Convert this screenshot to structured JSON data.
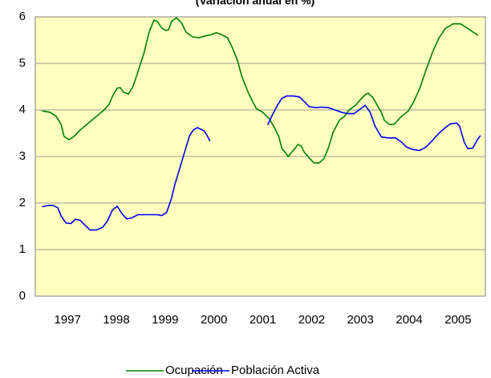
{
  "chart_data": {
    "type": "line",
    "title": "(Variación anual en %)",
    "xlim": [
      1996.34,
      2005.56
    ],
    "xticks": [
      1997,
      1998,
      1999,
      2000,
      2001,
      2002,
      2003,
      2004,
      2005
    ],
    "ylim": [
      0,
      6
    ],
    "yticks": [
      0,
      1,
      2,
      3,
      4,
      5,
      6
    ],
    "grid": true,
    "legend": "bottom",
    "series": [
      {
        "name": "Ocupación",
        "color": "#008000",
        "x": [
          1996.48,
          1996.64,
          1996.77,
          1996.87,
          1996.93,
          1997.03,
          1997.13,
          1997.26,
          1997.43,
          1997.59,
          1997.75,
          1997.85,
          1997.92,
          1998.02,
          1998.08,
          1998.15,
          1998.25,
          1998.34,
          1998.44,
          1998.57,
          1998.67,
          1998.77,
          1998.84,
          1998.93,
          1999.0,
          1999.07,
          1999.13,
          1999.23,
          1999.33,
          1999.43,
          1999.56,
          1999.69,
          1999.82,
          1999.95,
          2000.05,
          2000.15,
          2000.28,
          2000.38,
          2000.48,
          2000.57,
          2000.7,
          2000.8,
          2000.87,
          2001.0,
          2001.13,
          2001.23,
          2001.33,
          2001.39,
          2001.46,
          2001.52,
          2001.59,
          2001.66,
          2001.72,
          2001.79,
          2001.85,
          2001.95,
          2002.05,
          2002.15,
          2002.25,
          2002.34,
          2002.44,
          2002.57,
          2002.67,
          2002.77,
          2002.9,
          2003.0,
          2003.1,
          2003.16,
          2003.26,
          2003.36,
          2003.43,
          2003.49,
          2003.59,
          2003.69,
          2003.82,
          2003.98,
          2004.08,
          2004.21,
          2004.34,
          2004.48,
          2004.61,
          2004.74,
          2004.9,
          2005.05,
          2005.2,
          2005.41
        ],
        "values": [
          3.98,
          3.95,
          3.86,
          3.69,
          3.43,
          3.36,
          3.43,
          3.57,
          3.72,
          3.86,
          4.0,
          4.12,
          4.29,
          4.47,
          4.48,
          4.38,
          4.34,
          4.5,
          4.81,
          5.24,
          5.67,
          5.93,
          5.9,
          5.76,
          5.71,
          5.72,
          5.9,
          5.98,
          5.88,
          5.67,
          5.57,
          5.55,
          5.59,
          5.62,
          5.66,
          5.62,
          5.55,
          5.33,
          5.07,
          4.72,
          4.38,
          4.16,
          4.03,
          3.95,
          3.81,
          3.64,
          3.43,
          3.17,
          3.09,
          3.0,
          3.09,
          3.17,
          3.26,
          3.22,
          3.09,
          2.97,
          2.86,
          2.86,
          2.95,
          3.17,
          3.52,
          3.78,
          3.86,
          4.0,
          4.1,
          4.22,
          4.33,
          4.36,
          4.26,
          4.07,
          3.95,
          3.78,
          3.69,
          3.69,
          3.84,
          3.98,
          4.15,
          4.45,
          4.85,
          5.25,
          5.55,
          5.75,
          5.85,
          5.85,
          5.75,
          5.6
        ]
      },
      {
        "name": "Población Activa",
        "color": "#0000ff",
        "x": [
          1996.48,
          1996.61,
          1996.7,
          1996.8,
          1996.87,
          1996.97,
          1997.07,
          1997.16,
          1997.26,
          1997.36,
          1997.46,
          1997.59,
          1997.72,
          1997.82,
          1997.92,
          1998.02,
          1998.11,
          1998.21,
          1998.31,
          1998.44,
          1998.64,
          1998.84,
          1998.93,
          1999.03,
          1999.13,
          1999.2,
          1999.3,
          1999.4,
          1999.5,
          1999.58,
          1999.66,
          1999.74,
          1999.8,
          1999.86,
          1999.92,
          2000.5,
          2001.1,
          2001.2,
          2001.3,
          2001.39,
          2001.49,
          2001.62,
          2001.75,
          2001.85,
          2001.95,
          2002.08,
          2002.21,
          2002.34,
          2002.48,
          2002.61,
          2002.74,
          2002.87,
          2002.97,
          2003.1,
          2003.2,
          2003.3,
          2003.43,
          2003.56,
          2003.72,
          2003.85,
          2003.95,
          2004.08,
          2004.21,
          2004.34,
          2004.48,
          2004.61,
          2004.74,
          2004.84,
          2004.97,
          2005.03,
          2005.13,
          2005.2,
          2005.3,
          2005.39,
          2005.46
        ],
        "values": [
          1.92,
          1.95,
          1.95,
          1.9,
          1.72,
          1.57,
          1.56,
          1.65,
          1.63,
          1.52,
          1.42,
          1.42,
          1.48,
          1.62,
          1.85,
          1.93,
          1.78,
          1.66,
          1.68,
          1.75,
          1.75,
          1.75,
          1.73,
          1.8,
          2.1,
          2.4,
          2.75,
          3.1,
          3.45,
          3.57,
          3.62,
          3.58,
          3.55,
          3.45,
          3.33,
          null,
          3.68,
          3.9,
          4.1,
          4.25,
          4.3,
          4.3,
          4.28,
          4.18,
          4.07,
          4.05,
          4.06,
          4.05,
          4.0,
          3.95,
          3.92,
          3.92,
          4.0,
          4.1,
          3.95,
          3.65,
          3.42,
          3.4,
          3.4,
          3.3,
          3.2,
          3.15,
          3.13,
          3.2,
          3.35,
          3.5,
          3.62,
          3.7,
          3.72,
          3.65,
          3.3,
          3.17,
          3.18,
          3.35,
          3.45
        ]
      }
    ]
  }
}
